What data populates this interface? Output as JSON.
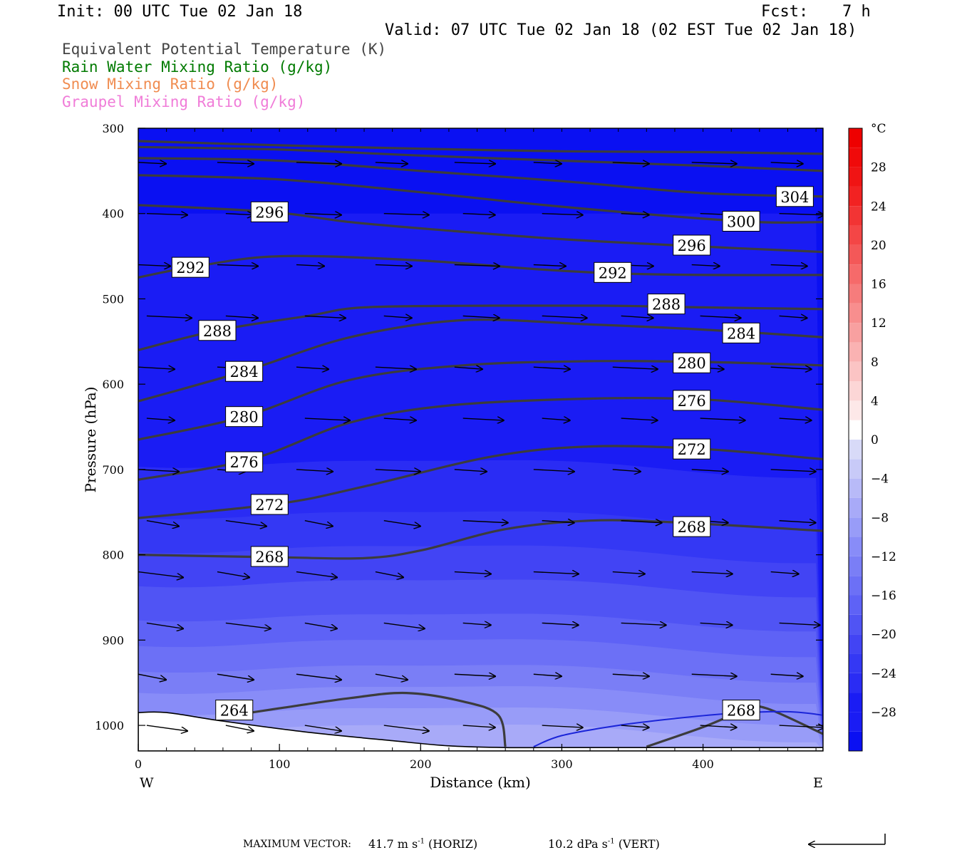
{
  "header": {
    "init": "Init: 00 UTC Tue 02 Jan 18",
    "fcst_label": "Fcst:",
    "fcst_value": "7 h",
    "valid": "Valid: 07 UTC Tue 02 Jan 18 (02 EST Tue 02 Jan 18)"
  },
  "legend": {
    "items": [
      {
        "label": "Equivalent Potential Temperature (K)",
        "color": "#444444"
      },
      {
        "label": "Rain Water Mixing Ratio (g/kg)",
        "color": "#007a00"
      },
      {
        "label": "Snow Mixing Ratio (g/kg)",
        "color": "#f08c50"
      },
      {
        "label": "Graupel Mixing Ratio (g/kg)",
        "color": "#f07cd8"
      }
    ]
  },
  "footer": {
    "label": "MAXIMUM VECTOR:",
    "horiz": "41.7 m s",
    "horiz_exp": "-1",
    "horiz_tag": "(HORIZ)",
    "vert": "10.2 dPa s",
    "vert_exp": "-1",
    "vert_tag": "(VERT)"
  },
  "chart_data": {
    "type": "contour-cross-section",
    "xlabel": "Distance (km)",
    "ylabel": "Pressure (hPa)",
    "xlim": [
      0,
      485
    ],
    "ylim": [
      1030,
      300
    ],
    "x_ticks": [
      0,
      100,
      200,
      300,
      400
    ],
    "y_ticks": [
      300,
      400,
      500,
      600,
      700,
      800,
      900,
      1000
    ],
    "x_end_labels": {
      "left": "W",
      "right": "E"
    },
    "colorbar": {
      "unit": "°C",
      "ticks": [
        28,
        24,
        20,
        16,
        12,
        8,
        4,
        0,
        -4,
        -8,
        -12,
        -16,
        -20,
        -24,
        -28
      ],
      "tick_labels": [
        "28",
        "24",
        "20",
        "16",
        "12",
        "8",
        "4",
        "0",
        "−4",
        "−8",
        "−12",
        "−16",
        "−20",
        "−24",
        "−28"
      ],
      "range": [
        -32,
        32
      ]
    },
    "temperature_bands": [
      {
        "t": -32,
        "color": "#0a10f2"
      },
      {
        "t": -30,
        "color": "#1a1cf4"
      },
      {
        "t": -28,
        "color": "#1a1cf4"
      },
      {
        "t": -26,
        "color": "#2a2cf4"
      },
      {
        "t": -24,
        "color": "#3438f4"
      },
      {
        "t": -22,
        "color": "#4244f4"
      },
      {
        "t": -20,
        "color": "#5054f4"
      },
      {
        "t": -18,
        "color": "#5e62f6"
      },
      {
        "t": -16,
        "color": "#6c70f6"
      },
      {
        "t": -14,
        "color": "#7a7ef6"
      },
      {
        "t": -12,
        "color": "#888cf8"
      },
      {
        "t": -10,
        "color": "#989cf8"
      },
      {
        "t": -8,
        "color": "#a8aaf8"
      },
      {
        "t": -6,
        "color": "#b8baf8"
      },
      {
        "t": -4,
        "color": "#c8caf8"
      },
      {
        "t": -2,
        "color": "#d8daf8"
      },
      {
        "t": 0,
        "color": "#ffffff"
      },
      {
        "t": 2,
        "color": "#fde8e8"
      },
      {
        "t": 4,
        "color": "#fcd6d6"
      },
      {
        "t": 6,
        "color": "#fbc4c4"
      },
      {
        "t": 8,
        "color": "#fab2b2"
      },
      {
        "t": 10,
        "color": "#f8a0a0"
      },
      {
        "t": 12,
        "color": "#f88e8e"
      },
      {
        "t": 14,
        "color": "#f67c7c"
      },
      {
        "t": 16,
        "color": "#f66a6a"
      },
      {
        "t": 18,
        "color": "#f45858"
      },
      {
        "t": 20,
        "color": "#f44646"
      },
      {
        "t": 22,
        "color": "#f23434"
      },
      {
        "t": 24,
        "color": "#f22222"
      },
      {
        "t": 26,
        "color": "#f01414"
      },
      {
        "t": 28,
        "color": "#f00a0a"
      },
      {
        "t": 30,
        "color": "#ee0000"
      }
    ],
    "theta_e_contours": [
      {
        "value": 264,
        "label": "264",
        "label_at": [
          68,
          982
        ],
        "points": [
          [
            60,
            990
          ],
          [
            100,
            980
          ],
          [
            150,
            968
          ],
          [
            190,
            962
          ],
          [
            230,
            972
          ],
          [
            255,
            988
          ],
          [
            260,
            1025
          ]
        ]
      },
      {
        "value": 268,
        "label": "268",
        "label_at": [
          93,
          802
        ],
        "points": [
          [
            0,
            800
          ],
          [
            100,
            803
          ],
          [
            160,
            804
          ],
          [
            200,
            795
          ],
          [
            260,
            770
          ],
          [
            320,
            760
          ],
          [
            380,
            762
          ],
          [
            485,
            772
          ]
        ]
      },
      {
        "value": 268,
        "label": "268",
        "label_at": [
          392,
          767
        ],
        "points": []
      },
      {
        "value": 268,
        "label": "268",
        "label_at": [
          427,
          982
        ],
        "points": [
          [
            360,
            1025
          ],
          [
            400,
            1002
          ],
          [
            430,
            982
          ],
          [
            445,
            980
          ],
          [
            485,
            1010
          ]
        ]
      },
      {
        "value": 272,
        "label": "272",
        "label_at": [
          93,
          741
        ],
        "points": [
          [
            0,
            757
          ],
          [
            100,
            740
          ],
          [
            160,
            720
          ],
          [
            250,
            685
          ],
          [
            320,
            673
          ],
          [
            400,
            676
          ],
          [
            485,
            688
          ]
        ]
      },
      {
        "value": 272,
        "label": "272",
        "label_at": [
          392,
          676
        ],
        "points": []
      },
      {
        "value": 276,
        "label": "276",
        "label_at": [
          75,
          691
        ],
        "points": [
          [
            0,
            712
          ],
          [
            80,
            688
          ],
          [
            150,
            645
          ],
          [
            220,
            625
          ],
          [
            320,
            617
          ],
          [
            400,
            618
          ],
          [
            485,
            630
          ]
        ]
      },
      {
        "value": 276,
        "label": "276",
        "label_at": [
          392,
          619
        ],
        "points": []
      },
      {
        "value": 280,
        "label": "280",
        "label_at": [
          75,
          638
        ],
        "points": [
          [
            0,
            665
          ],
          [
            75,
            638
          ],
          [
            150,
            595
          ],
          [
            230,
            578
          ],
          [
            320,
            573
          ],
          [
            400,
            574
          ],
          [
            485,
            578
          ]
        ]
      },
      {
        "value": 280,
        "label": "280",
        "label_at": [
          392,
          575
        ],
        "points": []
      },
      {
        "value": 284,
        "label": "284",
        "label_at": [
          75,
          585
        ],
        "points": [
          [
            0,
            620
          ],
          [
            75,
            585
          ],
          [
            150,
            545
          ],
          [
            230,
            525
          ],
          [
            320,
            530
          ],
          [
            400,
            536
          ],
          [
            485,
            545
          ]
        ]
      },
      {
        "value": 284,
        "label": "284",
        "label_at": [
          427,
          540
        ],
        "points": []
      },
      {
        "value": 288,
        "label": "288",
        "label_at": [
          56,
          537
        ],
        "points": [
          [
            0,
            560
          ],
          [
            56,
            537
          ],
          [
            120,
            520
          ],
          [
            160,
            510
          ],
          [
            250,
            508
          ],
          [
            330,
            508
          ],
          [
            400,
            510
          ],
          [
            485,
            512
          ]
        ]
      },
      {
        "value": 288,
        "label": "288",
        "label_at": [
          374,
          506
        ],
        "points": []
      },
      {
        "value": 292,
        "label": "292",
        "label_at": [
          37,
          463
        ],
        "points": [
          [
            0,
            475
          ],
          [
            37,
            463
          ],
          [
            100,
            450
          ],
          [
            200,
            455
          ],
          [
            280,
            465
          ],
          [
            336,
            470
          ],
          [
            400,
            472
          ],
          [
            485,
            472
          ]
        ]
      },
      {
        "value": 292,
        "label": "292",
        "label_at": [
          336,
          469
        ],
        "points": []
      },
      {
        "value": 296,
        "label": "296",
        "label_at": [
          93,
          398
        ],
        "points": [
          [
            0,
            390
          ],
          [
            93,
            398
          ],
          [
            150,
            410
          ],
          [
            220,
            420
          ],
          [
            300,
            430
          ],
          [
            390,
            438
          ],
          [
            485,
            445
          ]
        ]
      },
      {
        "value": 296,
        "label": "296",
        "label_at": [
          392,
          437
        ],
        "points": []
      },
      {
        "value": 300,
        "label": "300",
        "label_at": [
          427,
          409
        ],
        "points": [
          [
            0,
            355
          ],
          [
            100,
            360
          ],
          [
            200,
            375
          ],
          [
            300,
            392
          ],
          [
            427,
            409
          ],
          [
            485,
            410
          ]
        ]
      },
      {
        "value": 304,
        "label": "304",
        "label_at": [
          465,
          380
        ],
        "points": [
          [
            0,
            335
          ],
          [
            100,
            338
          ],
          [
            200,
            350
          ],
          [
            300,
            362
          ],
          [
            400,
            376
          ],
          [
            485,
            380
          ]
        ]
      },
      {
        "value": 308,
        "label": "",
        "label_at": null,
        "points": [
          [
            0,
            322
          ],
          [
            100,
            325
          ],
          [
            200,
            332
          ],
          [
            300,
            338
          ],
          [
            400,
            344
          ],
          [
            485,
            350
          ]
        ]
      },
      {
        "value": 312,
        "label": "",
        "label_at": null,
        "points": [
          [
            0,
            315
          ],
          [
            100,
            320
          ],
          [
            200,
            324
          ],
          [
            300,
            327
          ],
          [
            400,
            328
          ],
          [
            485,
            330
          ]
        ]
      }
    ],
    "wind_vectors": {
      "x": [
        0,
        56,
        112,
        168,
        224,
        280,
        336,
        392,
        448
      ],
      "p": [
        340,
        400,
        460,
        520,
        580,
        640,
        700,
        760,
        820,
        880,
        940,
        1000
      ],
      "u": 36,
      "w": 4
    }
  }
}
